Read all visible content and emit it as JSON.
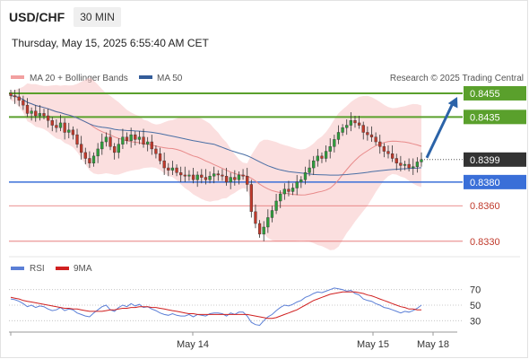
{
  "header": {
    "symbol": "USD/CHF",
    "timeframe": "30 MIN",
    "datetime": "Thursday, May 15, 2025 6:55:40 AM CET",
    "copyright": "Research © 2025 Trading Central"
  },
  "colors": {
    "up": "#2e9e3c",
    "down": "#c0392b",
    "band": "#f8c4c4",
    "ma20": "#e88a8a",
    "ma50": "#4a6fa5",
    "resistance": "#5aa02c",
    "support": "#3a6fd8",
    "support_weak": "#e36a6a",
    "arrow": "#2b63a8",
    "last": "#333333",
    "rsi": "#5b7fd6",
    "rsi_ma": "#d02020"
  },
  "chart_data": [
    {
      "type": "candlestick",
      "legend": [
        {
          "name": "MA 20 + Bollinger Bands",
          "color": "#f2a0a0"
        },
        {
          "name": "MA 50",
          "color": "#335c99"
        }
      ],
      "x_labels": [
        "May 14",
        "May 15",
        "May 18"
      ],
      "ylim": [
        0.832,
        0.8458
      ],
      "levels": [
        {
          "value": 0.8455,
          "label": "0.8455",
          "kind": "resistance"
        },
        {
          "value": 0.8435,
          "label": "0.8435",
          "kind": "resistance"
        },
        {
          "value": 0.8399,
          "label": "0.8399",
          "kind": "last"
        },
        {
          "value": 0.838,
          "label": "0.8380",
          "kind": "support"
        },
        {
          "value": 0.836,
          "label": "0.8360",
          "kind": "support_weak"
        },
        {
          "value": 0.833,
          "label": "0.8330",
          "kind": "support_weak"
        }
      ],
      "closes": [
        0.8453,
        0.8452,
        0.8449,
        0.8445,
        0.8438,
        0.844,
        0.8436,
        0.8438,
        0.8436,
        0.8432,
        0.8428,
        0.8426,
        0.843,
        0.8422,
        0.8424,
        0.842,
        0.8412,
        0.8405,
        0.84,
        0.8396,
        0.8402,
        0.8408,
        0.8414,
        0.8418,
        0.841,
        0.8405,
        0.8412,
        0.8418,
        0.8415,
        0.842,
        0.8416,
        0.8418,
        0.8412,
        0.8414,
        0.8408,
        0.8404,
        0.8398,
        0.8392,
        0.839,
        0.8392,
        0.8388,
        0.8386,
        0.8385,
        0.8386,
        0.8382,
        0.8386,
        0.8384,
        0.8382,
        0.8385,
        0.8387,
        0.8386,
        0.8385,
        0.838,
        0.8384,
        0.8382,
        0.8386,
        0.8385,
        0.8378,
        0.8355,
        0.8345,
        0.8336,
        0.8342,
        0.835,
        0.8356,
        0.8364,
        0.837,
        0.8374,
        0.8372,
        0.8375,
        0.838,
        0.8382,
        0.8388,
        0.8392,
        0.8398,
        0.8402,
        0.84,
        0.8406,
        0.841,
        0.8416,
        0.8422,
        0.8426,
        0.8428,
        0.8432,
        0.843,
        0.8428,
        0.8422,
        0.842,
        0.8418,
        0.8414,
        0.841,
        0.8406,
        0.8404,
        0.84,
        0.8396,
        0.8394,
        0.8395,
        0.8392,
        0.8393,
        0.8397,
        0.8399
      ],
      "forecast_arrow": {
        "from": 0.8399,
        "to": 0.8455
      }
    },
    {
      "type": "line",
      "legend": [
        {
          "name": "RSI",
          "color": "#5b7fd6"
        },
        {
          "name": "9MA",
          "color": "#d02020"
        }
      ],
      "ylim": [
        20,
        80
      ],
      "y_ticks": [
        {
          "value": 70,
          "label": "70"
        },
        {
          "value": 50,
          "label": "50"
        },
        {
          "value": 30,
          "label": "30"
        }
      ],
      "rsi": [
        58,
        57,
        55,
        52,
        48,
        50,
        47,
        49,
        48,
        45,
        43,
        44,
        47,
        43,
        45,
        44,
        40,
        38,
        36,
        35,
        40,
        44,
        48,
        50,
        44,
        42,
        47,
        50,
        48,
        52,
        49,
        51,
        47,
        48,
        45,
        43,
        40,
        38,
        37,
        39,
        37,
        36,
        36,
        38,
        35,
        38,
        37,
        36,
        39,
        40,
        40,
        39,
        36,
        40,
        38,
        41,
        41,
        36,
        28,
        25,
        24,
        30,
        35,
        38,
        43,
        47,
        50,
        49,
        51,
        54,
        56,
        60,
        62,
        65,
        67,
        66,
        68,
        70,
        72,
        71,
        70,
        68,
        69,
        65,
        63,
        58,
        56,
        55,
        52,
        50,
        47,
        46,
        44,
        42,
        40,
        42,
        41,
        43,
        46,
        50
      ],
      "rsi_ma": [
        60,
        59,
        58,
        56,
        55,
        54,
        53,
        52,
        51,
        50,
        49,
        48,
        47,
        46,
        46,
        45,
        45,
        44,
        43,
        42,
        42,
        42,
        42,
        43,
        44,
        44,
        45,
        46,
        46,
        47,
        47,
        48,
        48,
        48,
        47,
        47,
        46,
        45,
        44,
        43,
        42,
        41,
        40,
        39,
        39,
        38,
        38,
        38,
        38,
        38,
        38,
        38,
        38,
        38,
        38,
        38,
        38,
        38,
        37,
        36,
        35,
        34,
        33,
        33,
        34,
        36,
        38,
        40,
        42,
        44,
        47,
        50,
        53,
        56,
        58,
        60,
        62,
        64,
        65,
        66,
        67,
        67,
        67,
        67,
        66,
        65,
        63,
        62,
        60,
        58,
        56,
        54,
        52,
        50,
        48,
        47,
        45,
        45,
        44,
        44
      ]
    }
  ]
}
